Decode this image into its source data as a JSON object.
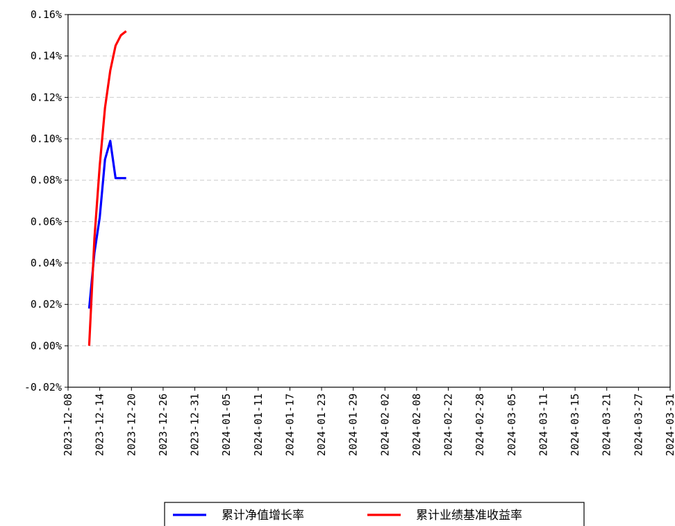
{
  "chart_data": {
    "type": "line",
    "title": "",
    "xlabel": "",
    "ylabel": "",
    "x_axis": {
      "type": "date",
      "ticks": [
        "2023-12-08",
        "2023-12-14",
        "2023-12-20",
        "2023-12-26",
        "2023-12-31",
        "2024-01-05",
        "2024-01-11",
        "2024-01-17",
        "2024-01-23",
        "2024-01-29",
        "2024-02-02",
        "2024-02-08",
        "2024-02-22",
        "2024-02-28",
        "2024-03-05",
        "2024-03-11",
        "2024-03-15",
        "2024-03-21",
        "2024-03-27",
        "2024-03-31"
      ]
    },
    "y_axis": {
      "ylim": [
        -0.0002,
        0.0016
      ],
      "ticks": [
        -0.0002,
        0,
        0.0002,
        0.0004,
        0.0006,
        0.0008,
        0.001,
        0.0012,
        0.0014,
        0.0016
      ],
      "tick_labels": [
        "-0.02%",
        "0.00%",
        "0.02%",
        "0.04%",
        "0.06%",
        "0.08%",
        "0.10%",
        "0.12%",
        "0.14%",
        "0.16%"
      ],
      "grid": "horizontal dashed"
    },
    "series": [
      {
        "name": "累计净值增长率",
        "color": "#0000ff",
        "x": [
          "2023-12-12",
          "2023-12-13",
          "2023-12-14",
          "2023-12-15",
          "2023-12-16",
          "2023-12-17",
          "2023-12-18",
          "2023-12-19"
        ],
        "y": [
          0.00018,
          0.00045,
          0.00062,
          0.0009,
          0.00099,
          0.00081,
          0.00081,
          0.00081
        ]
      },
      {
        "name": "累计业绩基准收益率",
        "color": "#ff0000",
        "x": [
          "2023-12-12",
          "2023-12-13",
          "2023-12-14",
          "2023-12-15",
          "2023-12-16",
          "2023-12-17",
          "2023-12-18",
          "2023-12-19"
        ],
        "y": [
          0,
          0.00052,
          0.00087,
          0.00115,
          0.00133,
          0.00145,
          0.0015,
          0.00152
        ]
      }
    ],
    "legend": {
      "position": "bottom-center"
    }
  }
}
